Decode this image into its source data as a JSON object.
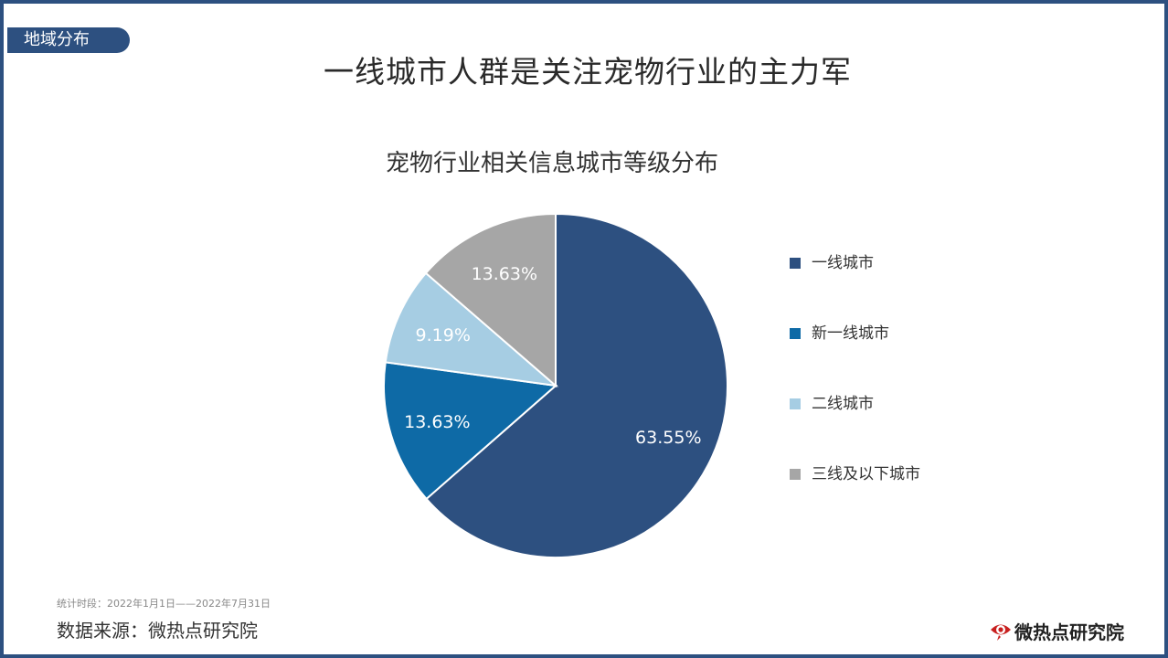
{
  "section_tag": "地域分布",
  "main_title": "一线城市人群是关注宠物行业的主力军",
  "footer": {
    "period": "统计时段：2022年1月1日——2022年7月31日",
    "source": "数据来源：微热点研究院",
    "brand": "微热点研究院",
    "brand_logo_icon": "eye-logo-icon"
  },
  "chart_data": {
    "type": "pie",
    "title": "宠物行业相关信息城市等级分布",
    "legend_position": "right",
    "slices": [
      {
        "label": "一线城市",
        "value": 63.55,
        "display": "63.55%",
        "color": "#2d5080",
        "label_color": "#ffffff"
      },
      {
        "label": "新一线城市",
        "value": 13.63,
        "display": "13.63%",
        "color": "#0e6aa6",
        "label_color": "#ffffff"
      },
      {
        "label": "二线城市",
        "value": 9.19,
        "display": "9.19%",
        "color": "#a6cde3",
        "label_color": "#ffffff"
      },
      {
        "label": "三线及以下城市",
        "value": 13.63,
        "display": "13.63%",
        "color": "#a6a6a6",
        "label_color": "#ffffff"
      }
    ]
  }
}
